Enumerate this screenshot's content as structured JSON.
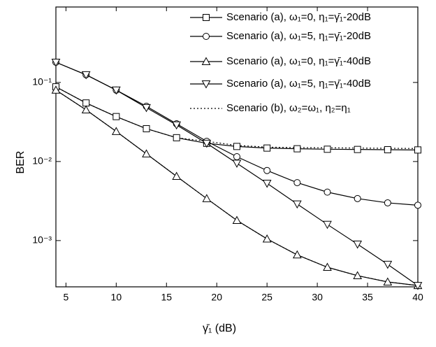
{
  "chart_data": {
    "type": "line",
    "log_y": true,
    "xlabel": "γ̄₁ (dB)",
    "ylabel": "BER",
    "x": [
      4,
      7,
      10,
      13,
      16,
      19,
      22,
      25,
      28,
      31,
      34,
      37,
      40
    ],
    "xlim": [
      4,
      40
    ],
    "xticks": [
      5,
      10,
      15,
      20,
      25,
      30,
      35,
      40
    ],
    "ylim": [
      0.00026,
      0.9
    ],
    "yticks": [
      {
        "value": 0.001,
        "label": "10⁻³"
      },
      {
        "value": 0.01,
        "label": "10⁻²"
      },
      {
        "value": 0.1,
        "label": "10⁻¹"
      }
    ],
    "legend": "upper right",
    "series": [
      {
        "name": "Scenario (a), ω₁=0, η₁=γ̄₁-20dB",
        "color": "#000000",
        "marker": "square",
        "style": "solid",
        "values": [
          0.088,
          0.055,
          0.037,
          0.026,
          0.02,
          0.017,
          0.0155,
          0.0148,
          0.0145,
          0.0143,
          0.0142,
          0.0141,
          0.014
        ]
      },
      {
        "name": "Scenario (a), ω₁=5, η₁=γ̄₁-20dB",
        "color": "#000000",
        "marker": "circle",
        "style": "solid",
        "values": [
          0.18,
          0.125,
          0.08,
          0.05,
          0.03,
          0.018,
          0.0115,
          0.0077,
          0.0054,
          0.0041,
          0.0034,
          0.003,
          0.0028
        ]
      },
      {
        "name": "Scenario (a), ω₁=0, η₁=γ̄₁-40dB",
        "color": "#000000",
        "marker": "triangle",
        "style": "solid",
        "values": [
          0.08,
          0.045,
          0.024,
          0.0125,
          0.0065,
          0.0034,
          0.0018,
          0.00105,
          0.00066,
          0.00046,
          0.00036,
          0.0003,
          0.00027
        ]
      },
      {
        "name": "Scenario (a), ω₁=5, η₁=γ̄₁-40dB",
        "color": "#000000",
        "marker": "triangle-down",
        "style": "solid",
        "values": [
          0.18,
          0.125,
          0.08,
          0.048,
          0.029,
          0.017,
          0.0095,
          0.0053,
          0.0029,
          0.0016,
          0.0009,
          0.0005,
          0.00027
        ]
      },
      {
        "name": "Scenario (b), ω₂=ω₁, η₂=η₁",
        "color": "#000000",
        "style": "dotted",
        "curves": [
          [
            0.088,
            0.055,
            0.037,
            0.026,
            0.02,
            0.018,
            0.016,
            0.0152,
            0.015,
            0.0149,
            0.0148,
            0.0147,
            0.0146
          ],
          [
            0.08,
            0.045,
            0.024,
            0.0125,
            0.0065,
            0.0034,
            0.0018,
            0.00105,
            0.00066,
            0.00046,
            0.00036,
            0.0003,
            0.00027
          ]
        ]
      }
    ]
  }
}
